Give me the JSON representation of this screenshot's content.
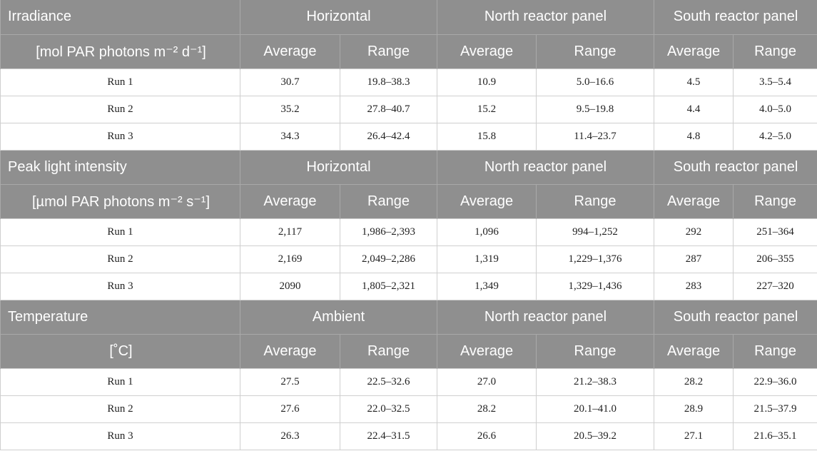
{
  "sections": [
    {
      "label": "Irradiance",
      "unit": "[mol PAR photons m⁻² d⁻¹]",
      "groups": [
        "Horizontal",
        "North reactor panel",
        "South reactor panel"
      ],
      "sub": [
        "Average",
        "Range",
        "Average",
        "Range",
        "Average",
        "Range"
      ],
      "rows": [
        {
          "run": "Run 1",
          "cells": [
            "30.7",
            "19.8–38.3",
            "10.9",
            "5.0–16.6",
            "4.5",
            "3.5–5.4"
          ]
        },
        {
          "run": "Run 2",
          "cells": [
            "35.2",
            "27.8–40.7",
            "15.2",
            "9.5–19.8",
            "4.4",
            "4.0–5.0"
          ]
        },
        {
          "run": "Run 3",
          "cells": [
            "34.3",
            "26.4–42.4",
            "15.8",
            "11.4–23.7",
            "4.8",
            "4.2–5.0"
          ]
        }
      ]
    },
    {
      "label": "Peak light intensity",
      "unit": "[µmol PAR photons m⁻² s⁻¹]",
      "groups": [
        "Horizontal",
        "North reactor panel",
        "South reactor panel"
      ],
      "sub": [
        "Average",
        "Range",
        "Average",
        "Range",
        "Average",
        "Range"
      ],
      "rows": [
        {
          "run": "Run 1",
          "cells": [
            "2,117",
            "1,986–2,393",
            "1,096",
            "994–1,252",
            "292",
            "251–364"
          ]
        },
        {
          "run": "Run 2",
          "cells": [
            "2,169",
            "2,049–2,286",
            "1,319",
            "1,229–1,376",
            "287",
            "206–355"
          ]
        },
        {
          "run": "Run 3",
          "cells": [
            "2090",
            "1,805–2,321",
            "1,349",
            "1,329–1,436",
            "283",
            "227–320"
          ]
        }
      ]
    },
    {
      "label": "Temperature",
      "unit": "[˚C]",
      "groups": [
        "Ambient",
        "North reactor panel",
        "South reactor panel"
      ],
      "sub": [
        "Average",
        "Range",
        "Average",
        "Range",
        "Average",
        "Range"
      ],
      "rows": [
        {
          "run": "Run 1",
          "cells": [
            "27.5",
            "22.5–32.6",
            "27.0",
            "21.2–38.3",
            "28.2",
            "22.9–36.0"
          ]
        },
        {
          "run": "Run 2",
          "cells": [
            "27.6",
            "22.0–32.5",
            "28.2",
            "20.1–41.0",
            "28.9",
            "21.5–37.9"
          ]
        },
        {
          "run": "Run 3",
          "cells": [
            "26.3",
            "22.4–31.5",
            "26.6",
            "20.5–39.2",
            "27.1",
            "21.6–35.1"
          ]
        }
      ]
    }
  ]
}
